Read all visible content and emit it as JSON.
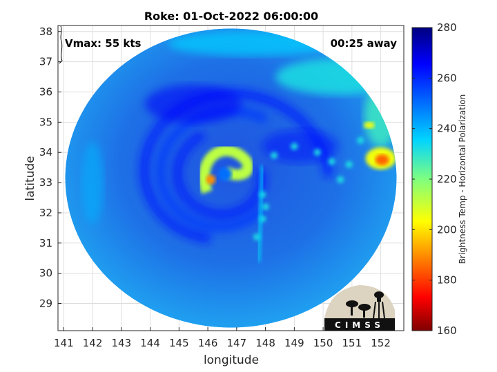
{
  "chart_data": {
    "type": "heatmap",
    "title": "Roke: 01-Oct-2022 06:00:00",
    "xlabel": "longitude",
    "ylabel": "latitude",
    "xlim": [
      140.8,
      152.8
    ],
    "ylim": [
      28.1,
      38.2
    ],
    "x_ticks": [
      141,
      142,
      143,
      144,
      145,
      146,
      147,
      148,
      149,
      150,
      151,
      152
    ],
    "y_ticks": [
      29,
      30,
      31,
      32,
      33,
      34,
      35,
      36,
      37,
      38
    ],
    "grid": true,
    "colorbar": {
      "label": "Brightness Temp - Horizontal Polarization",
      "range": [
        160,
        280
      ],
      "ticks": [
        160,
        180,
        200,
        220,
        240,
        260,
        280
      ],
      "colormap": "jet"
    },
    "annotations": {
      "vmax": "Vmax: 55 kts",
      "time_away": "00:25 away"
    },
    "storm_center": {
      "lon": 146.6,
      "lat": 33.2
    },
    "swath": {
      "center_lon": 146.8,
      "center_lat": 33.15,
      "radius_lon": 5.75,
      "radius_lat": 4.95
    },
    "features": [
      {
        "name": "eyewall warm ring",
        "lon": 146.5,
        "lat": 33.6,
        "value": 212
      },
      {
        "name": "warm core",
        "lon": 146.1,
        "lat": 33.1,
        "value": 190
      },
      {
        "name": "northeast convection",
        "lon": 152.0,
        "lat": 33.8,
        "value": 185
      },
      {
        "name": "rainband",
        "lon": 147.9,
        "lat": 32.2,
        "value": 235
      }
    ]
  },
  "logo": {
    "text": "CIMSS"
  }
}
